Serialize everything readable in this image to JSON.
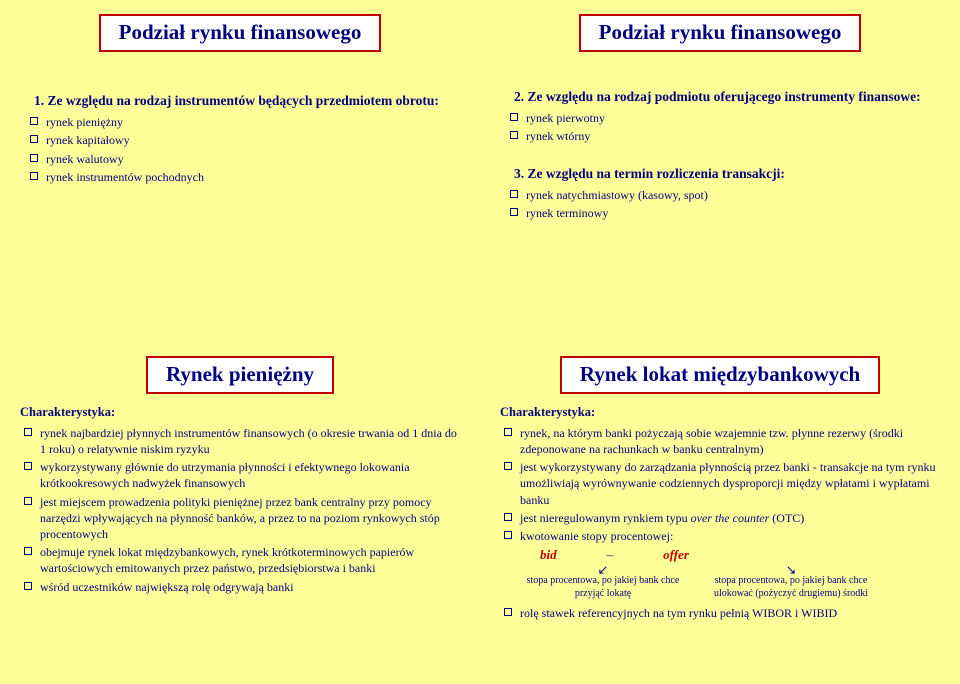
{
  "colors": {
    "slide_bg": "#ffff99",
    "title_bg": "#ffffff",
    "title_border": "#c00000",
    "text": "#000080",
    "accent_red": "#c00000"
  },
  "typography": {
    "family": "Times New Roman",
    "title_fontsize_pt": 16,
    "body_fontsize_pt": 9,
    "heading_fontsize_pt": 10
  },
  "slide1": {
    "title": "Podział rynku finansowego",
    "heading1": "1. Ze względu na rodzaj instrumentów będących przedmiotem obrotu:",
    "items1": [
      "rynek pieniężny",
      "rynek kapitałowy",
      "rynek walutowy",
      "rynek instrumentów pochodnych"
    ]
  },
  "slide2": {
    "title": "Podział rynku finansowego",
    "heading2": "2. Ze względu na rodzaj podmiotu oferującego instrumenty finansowe:",
    "items2": [
      "rynek pierwotny",
      "rynek wtórny"
    ],
    "heading3": "3. Ze względu na termin rozliczenia transakcji:",
    "items3": [
      "rynek natychmiastowy (kasowy, spot)",
      "rynek terminowy"
    ]
  },
  "slide3": {
    "title": "Rynek pieniężny",
    "charak": "Charakterystyka:",
    "items": [
      "rynek najbardziej płynnych instrumentów finansowych (o okresie trwania od 1 dnia do 1 roku) o relatywnie niskim ryzyku",
      "wykorzystywany głównie do  utrzymania płynności i efektywnego lokowania krótkookresowych nadwyżek finansowych",
      "jest miejscem prowadzenia polityki pieniężnej przez bank centralny przy pomocy narzędzi wpływających na płynność banków, a przez to na poziom rynkowych stóp procentowych",
      "obejmuje rynek lokat międzybankowych, rynek krótkoterminowych papierów wartościowych emitowanych przez państwo, przedsiębiorstwa i banki",
      "wśród uczestników największą rolę odgrywają banki"
    ]
  },
  "slide4": {
    "title": "Rynek lokat międzybankowych",
    "charak": "Charakterystyka:",
    "items_before": [
      "rynek, na którym banki pożyczają sobie wzajemnie tzw. płynne rezerwy (środki zdeponowane na rachunkach w banku centralnym)",
      "jest wykorzystywany do zarządzania płynnością przez banki - transakcje na tym rynku umożliwiają wyrównywanie codziennych dysproporcji między wpłatami i wypłatami banku",
      "jest nieregulowanym rynkiem typu over the counter (OTC)",
      "kwotowanie stopy procentowej:"
    ],
    "bid": "bid",
    "dash": "–",
    "offer": "offer",
    "bid_note": "stopa procentowa, po jakiej bank chce przyjąć lokatę",
    "offer_note": "stopa procentowa, po jakiej bank chce ulokować (pożyczyć drugiemu) środki",
    "items_after": [
      "rolę stawek referencyjnych na tym rynku pełnią WIBOR i WIBID"
    ]
  }
}
